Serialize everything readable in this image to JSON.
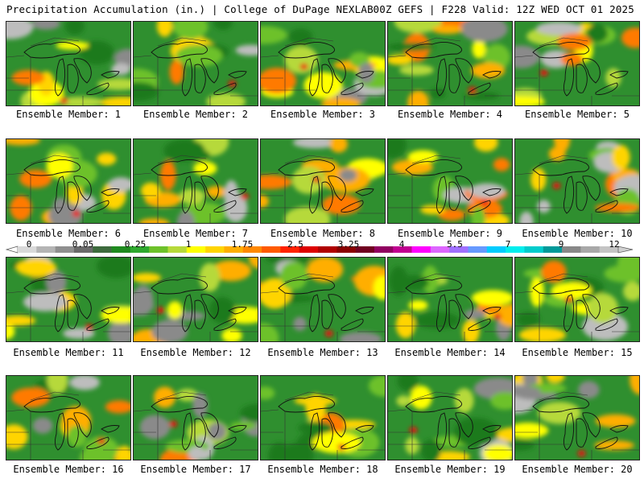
{
  "header": {
    "title": "Precipitation Accumulation (in.) | College of DuPage NEXLAB",
    "run": "00Z GEFS | F228 Valid: 12Z WED OCT 01 2025"
  },
  "legend": {
    "tick_labels": [
      "0",
      "0.05",
      "0.25",
      "1",
      "1.75",
      "2.5",
      "3.25",
      "4",
      "5.5",
      "7",
      "9",
      "12"
    ],
    "colors": [
      "#d9d9d9",
      "#b4b4b4",
      "#8f8f8f",
      "#6a6a6a",
      "#3d6b3d",
      "#1f8a1f",
      "#2ea82e",
      "#6dc12a",
      "#b6d93a",
      "#ffff00",
      "#ffd400",
      "#ffae00",
      "#ff8800",
      "#ff5a00",
      "#ff2200",
      "#dd0000",
      "#b00000",
      "#8a0000",
      "#700020",
      "#900060",
      "#c00090",
      "#ff00ff",
      "#dd66ff",
      "#a070ff",
      "#6699ff",
      "#00ccff",
      "#00eeee",
      "#00cccc",
      "#009999",
      "#888888",
      "#a8a8a8",
      "#c4c4c4"
    ]
  },
  "panels": [
    {
      "label": "Ensemble Member: 1"
    },
    {
      "label": "Ensemble Member: 2"
    },
    {
      "label": "Ensemble Member: 3"
    },
    {
      "label": "Ensemble Member: 4"
    },
    {
      "label": "Ensemble Member: 5"
    },
    {
      "label": "Ensemble Member: 6"
    },
    {
      "label": "Ensemble Member: 7"
    },
    {
      "label": "Ensemble Member: 8"
    },
    {
      "label": "Ensemble Member: 9"
    },
    {
      "label": "Ensemble Member: 10"
    },
    {
      "label": "Ensemble Member: 11"
    },
    {
      "label": "Ensemble Member: 12"
    },
    {
      "label": "Ensemble Member: 13"
    },
    {
      "label": "Ensemble Member: 14"
    },
    {
      "label": "Ensemble Member: 15"
    },
    {
      "label": "Ensemble Member: 16"
    },
    {
      "label": "Ensemble Member: 17"
    },
    {
      "label": "Ensemble Member: 18"
    },
    {
      "label": "Ensemble Member: 19"
    },
    {
      "label": "Ensemble Member: 20"
    }
  ]
}
